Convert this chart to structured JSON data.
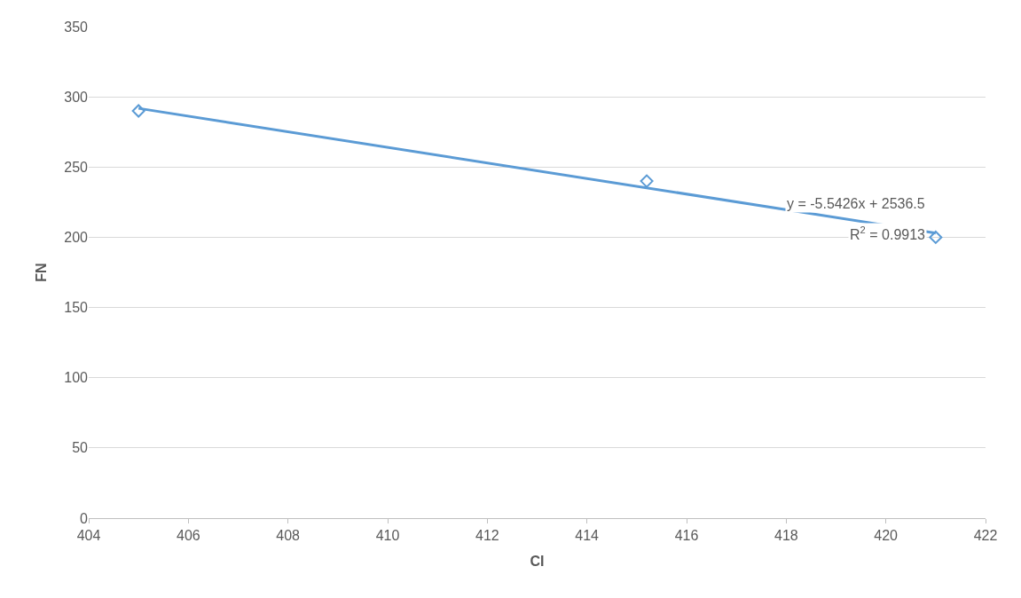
{
  "chart_data": {
    "type": "scatter",
    "xlabel": "CI",
    "ylabel": "FN",
    "xlim": [
      404,
      422
    ],
    "xticks": [
      404,
      406,
      408,
      410,
      412,
      414,
      416,
      418,
      420,
      422
    ],
    "ylim": [
      0,
      350
    ],
    "yticks": [
      0,
      50,
      100,
      150,
      200,
      250,
      300,
      350
    ],
    "grid": "y",
    "marker": "diamond",
    "series": [
      {
        "color": "#5b9bd5",
        "x": [
          405,
          415.2,
          421
        ],
        "values": [
          290,
          240,
          200
        ]
      },
      {
        "type": "line",
        "color": "#5b9bd5",
        "x": [
          405,
          421
        ],
        "values": [
          291.8,
          203.0
        ],
        "line_style": "solid",
        "marker": "none"
      }
    ],
    "annotations": [
      "y = -5.5426x + 2536.5",
      "R$^{2}$ = 0.9913"
    ]
  }
}
